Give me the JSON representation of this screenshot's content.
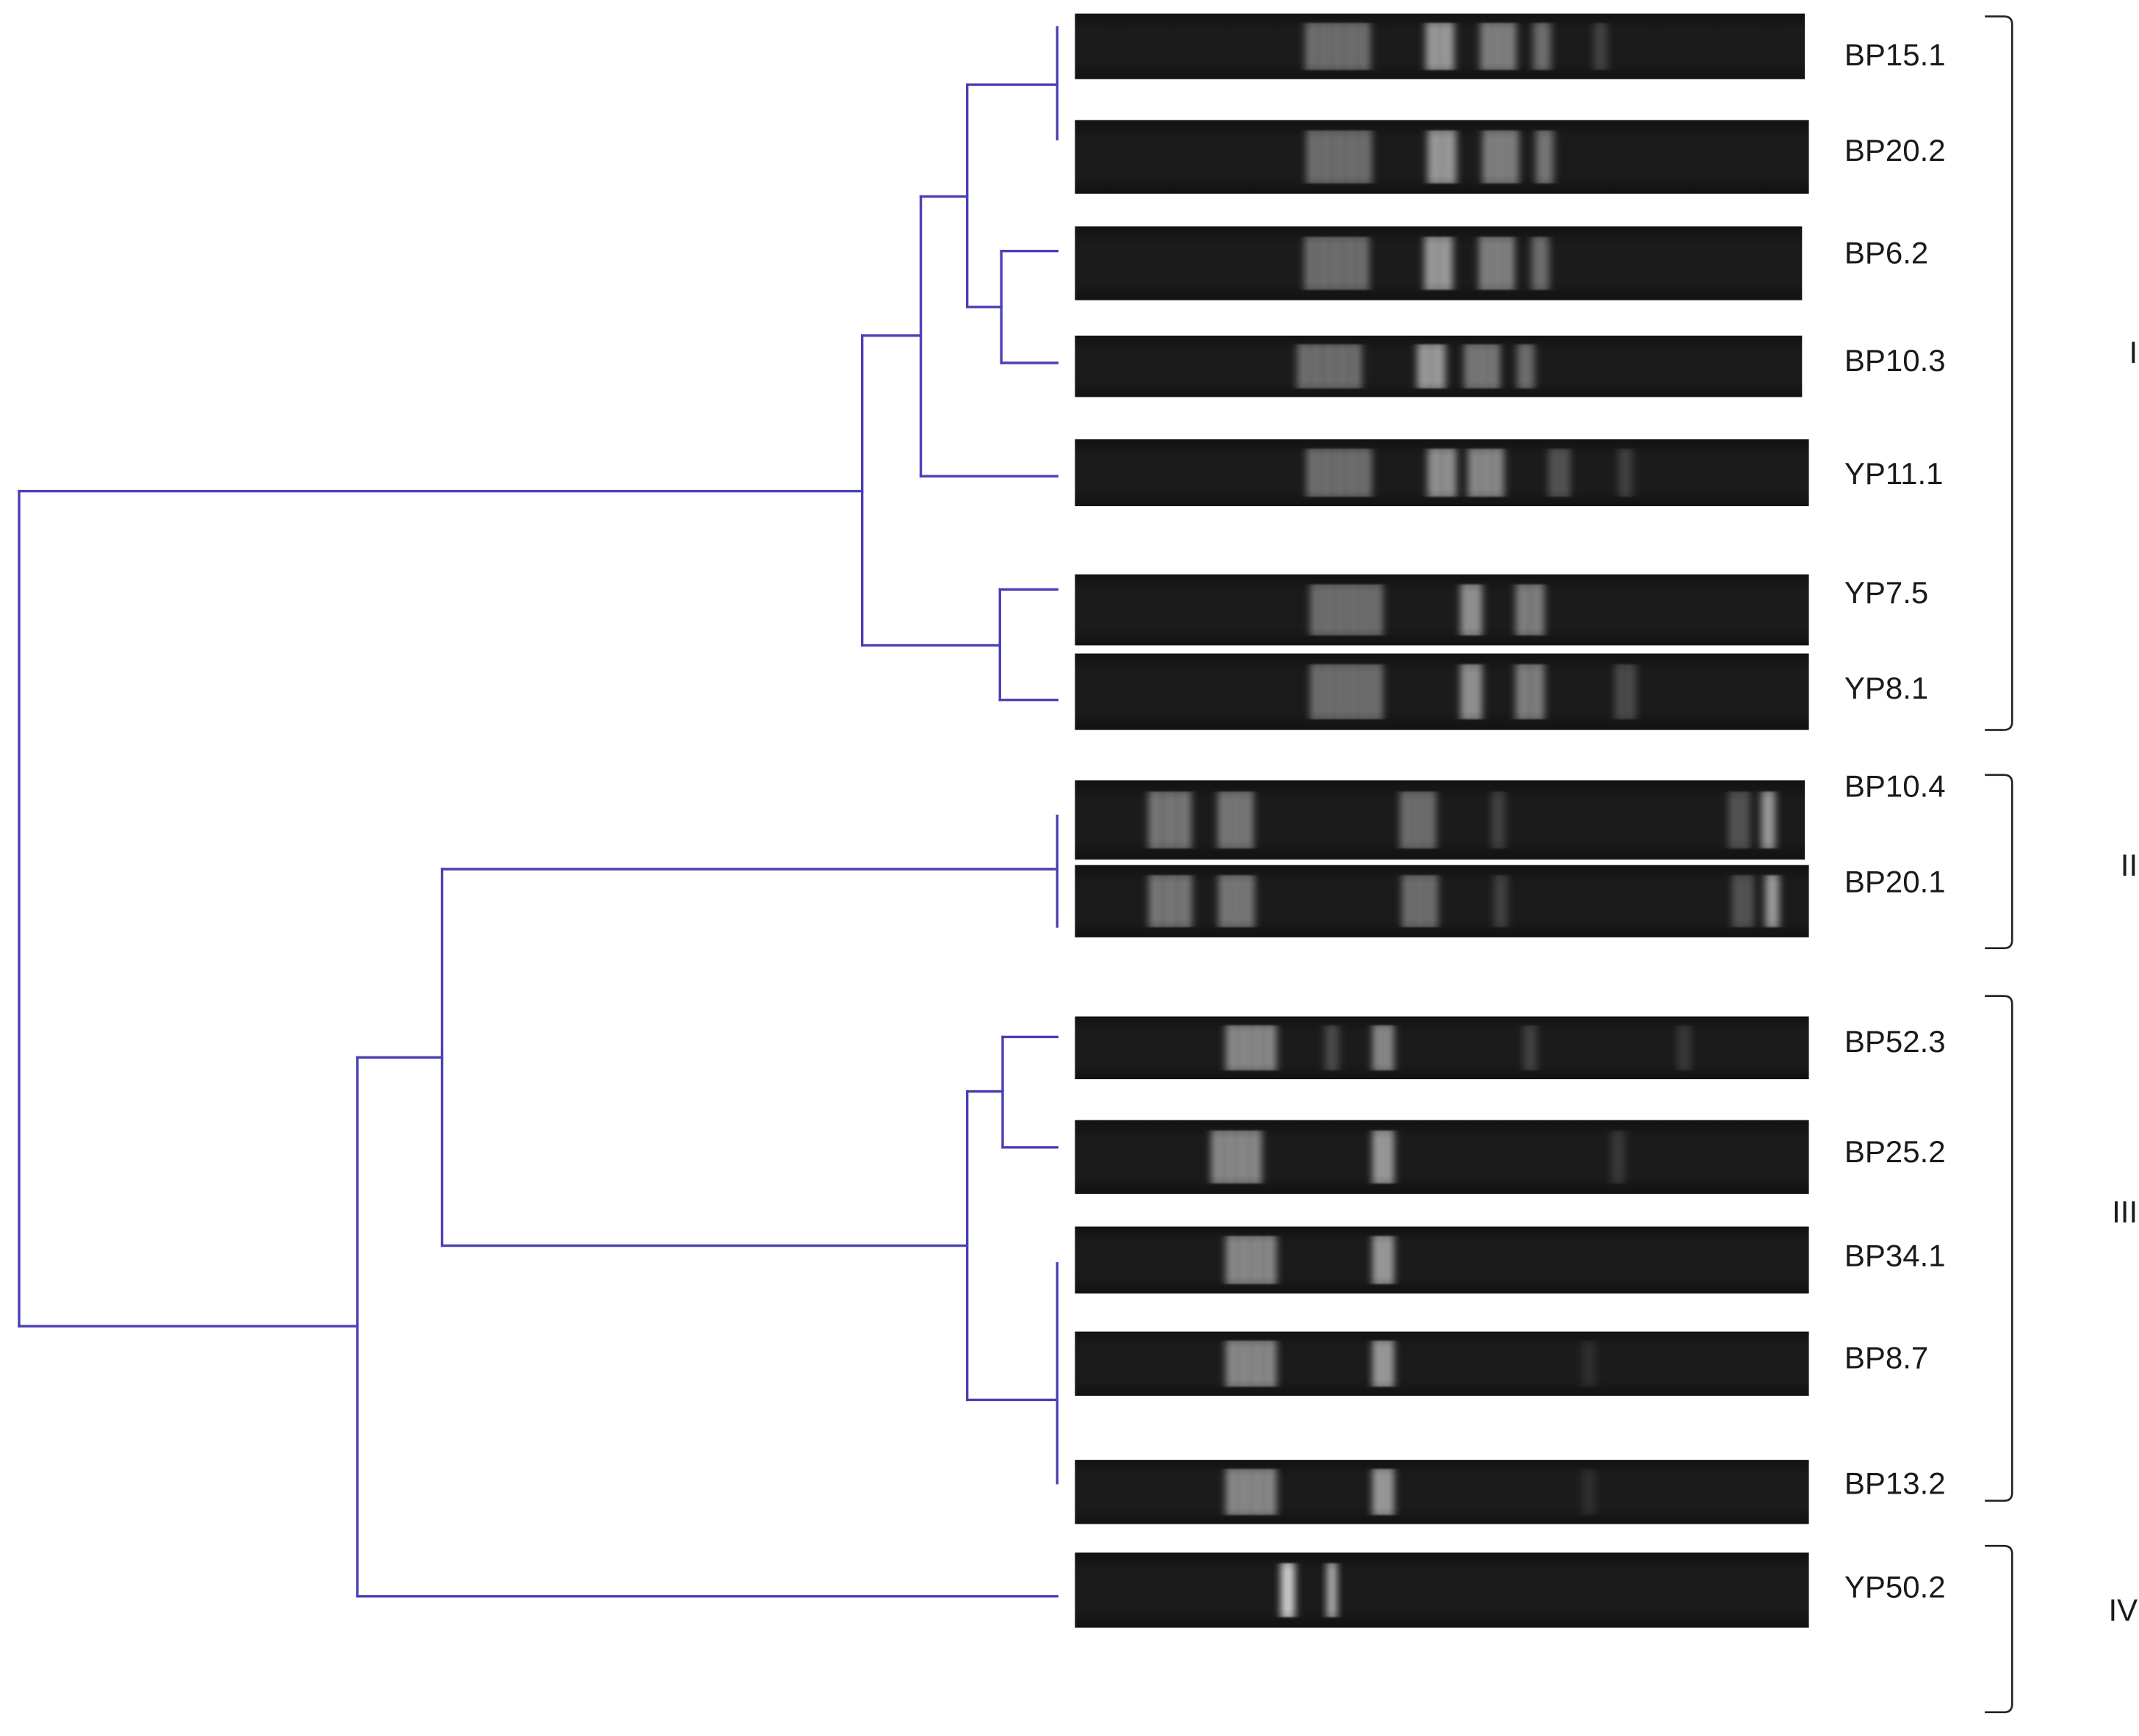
{
  "samples": [
    {
      "id": "BP15.1",
      "bands": [
        {
          "p": 0.36,
          "w": 0.09,
          "i": 0.45
        },
        {
          "p": 0.5,
          "w": 0.04,
          "i": 0.7
        },
        {
          "p": 0.58,
          "w": 0.05,
          "i": 0.55
        },
        {
          "p": 0.64,
          "w": 0.025,
          "i": 0.45
        },
        {
          "p": 0.72,
          "w": 0.02,
          "i": 0.2
        }
      ]
    },
    {
      "id": "BP20.2",
      "bands": [
        {
          "p": 0.36,
          "w": 0.09,
          "i": 0.45
        },
        {
          "p": 0.5,
          "w": 0.04,
          "i": 0.7
        },
        {
          "p": 0.58,
          "w": 0.05,
          "i": 0.55
        },
        {
          "p": 0.64,
          "w": 0.025,
          "i": 0.5
        }
      ]
    },
    {
      "id": "BP6.2",
      "bands": [
        {
          "p": 0.36,
          "w": 0.09,
          "i": 0.45
        },
        {
          "p": 0.5,
          "w": 0.04,
          "i": 0.7
        },
        {
          "p": 0.58,
          "w": 0.05,
          "i": 0.55
        },
        {
          "p": 0.64,
          "w": 0.025,
          "i": 0.45
        }
      ]
    },
    {
      "id": "BP10.3",
      "bands": [
        {
          "p": 0.35,
          "w": 0.09,
          "i": 0.45
        },
        {
          "p": 0.49,
          "w": 0.04,
          "i": 0.7
        },
        {
          "p": 0.56,
          "w": 0.05,
          "i": 0.5
        },
        {
          "p": 0.62,
          "w": 0.025,
          "i": 0.45
        }
      ]
    },
    {
      "id": "YP11.1",
      "bands": [
        {
          "p": 0.36,
          "w": 0.09,
          "i": 0.45
        },
        {
          "p": 0.5,
          "w": 0.04,
          "i": 0.65
        },
        {
          "p": 0.56,
          "w": 0.05,
          "i": 0.6
        },
        {
          "p": 0.66,
          "w": 0.03,
          "i": 0.3
        },
        {
          "p": 0.75,
          "w": 0.02,
          "i": 0.2
        }
      ]
    },
    {
      "id": "YP7.5",
      "bands": [
        {
          "p": 0.37,
          "w": 0.1,
          "i": 0.45
        },
        {
          "p": 0.54,
          "w": 0.03,
          "i": 0.65
        },
        {
          "p": 0.62,
          "w": 0.04,
          "i": 0.55
        }
      ]
    },
    {
      "id": "YP8.1",
      "bands": [
        {
          "p": 0.37,
          "w": 0.1,
          "i": 0.45
        },
        {
          "p": 0.54,
          "w": 0.03,
          "i": 0.65
        },
        {
          "p": 0.62,
          "w": 0.04,
          "i": 0.55
        },
        {
          "p": 0.75,
          "w": 0.03,
          "i": 0.25
        }
      ]
    },
    {
      "id": "BP10.4",
      "bands": [
        {
          "p": 0.13,
          "w": 0.06,
          "i": 0.5
        },
        {
          "p": 0.22,
          "w": 0.05,
          "i": 0.5
        },
        {
          "p": 0.47,
          "w": 0.05,
          "i": 0.45
        },
        {
          "p": 0.58,
          "w": 0.02,
          "i": 0.2
        },
        {
          "p": 0.91,
          "w": 0.03,
          "i": 0.3
        },
        {
          "p": 0.95,
          "w": 0.02,
          "i": 0.7
        }
      ]
    },
    {
      "id": "BP20.1",
      "bands": [
        {
          "p": 0.13,
          "w": 0.06,
          "i": 0.5
        },
        {
          "p": 0.22,
          "w": 0.05,
          "i": 0.5
        },
        {
          "p": 0.47,
          "w": 0.05,
          "i": 0.45
        },
        {
          "p": 0.58,
          "w": 0.02,
          "i": 0.2
        },
        {
          "p": 0.91,
          "w": 0.03,
          "i": 0.3
        },
        {
          "p": 0.95,
          "w": 0.02,
          "i": 0.7
        }
      ]
    },
    {
      "id": "BP52.3",
      "bands": [
        {
          "p": 0.24,
          "w": 0.07,
          "i": 0.6
        },
        {
          "p": 0.35,
          "w": 0.02,
          "i": 0.25
        },
        {
          "p": 0.42,
          "w": 0.03,
          "i": 0.6
        },
        {
          "p": 0.62,
          "w": 0.02,
          "i": 0.2
        },
        {
          "p": 0.83,
          "w": 0.02,
          "i": 0.15
        }
      ]
    },
    {
      "id": "BP25.2",
      "bands": [
        {
          "p": 0.22,
          "w": 0.07,
          "i": 0.6
        },
        {
          "p": 0.42,
          "w": 0.03,
          "i": 0.7
        },
        {
          "p": 0.74,
          "w": 0.02,
          "i": 0.15
        }
      ]
    },
    {
      "id": "BP34.1",
      "bands": [
        {
          "p": 0.24,
          "w": 0.07,
          "i": 0.6
        },
        {
          "p": 0.42,
          "w": 0.03,
          "i": 0.7
        }
      ]
    },
    {
      "id": "BP8.7",
      "bands": [
        {
          "p": 0.24,
          "w": 0.07,
          "i": 0.6
        },
        {
          "p": 0.42,
          "w": 0.03,
          "i": 0.7
        },
        {
          "p": 0.7,
          "w": 0.02,
          "i": 0.1
        }
      ]
    },
    {
      "id": "BP13.2",
      "bands": [
        {
          "p": 0.24,
          "w": 0.07,
          "i": 0.6
        },
        {
          "p": 0.42,
          "w": 0.03,
          "i": 0.7
        },
        {
          "p": 0.7,
          "w": 0.02,
          "i": 0.1
        }
      ]
    },
    {
      "id": "YP50.2",
      "bands": [
        {
          "p": 0.29,
          "w": 0.02,
          "i": 1.0
        },
        {
          "p": 0.35,
          "w": 0.015,
          "i": 0.8
        }
      ]
    }
  ],
  "clusters": [
    {
      "label": "I"
    },
    {
      "label": "II"
    },
    {
      "label": "III"
    },
    {
      "label": "IV"
    }
  ],
  "colors": {
    "tree": "#4a40b4",
    "lane_background": "#1b1b1b",
    "band": "#ffffff",
    "bracket": "#222222",
    "label": "#1a1a1a"
  }
}
